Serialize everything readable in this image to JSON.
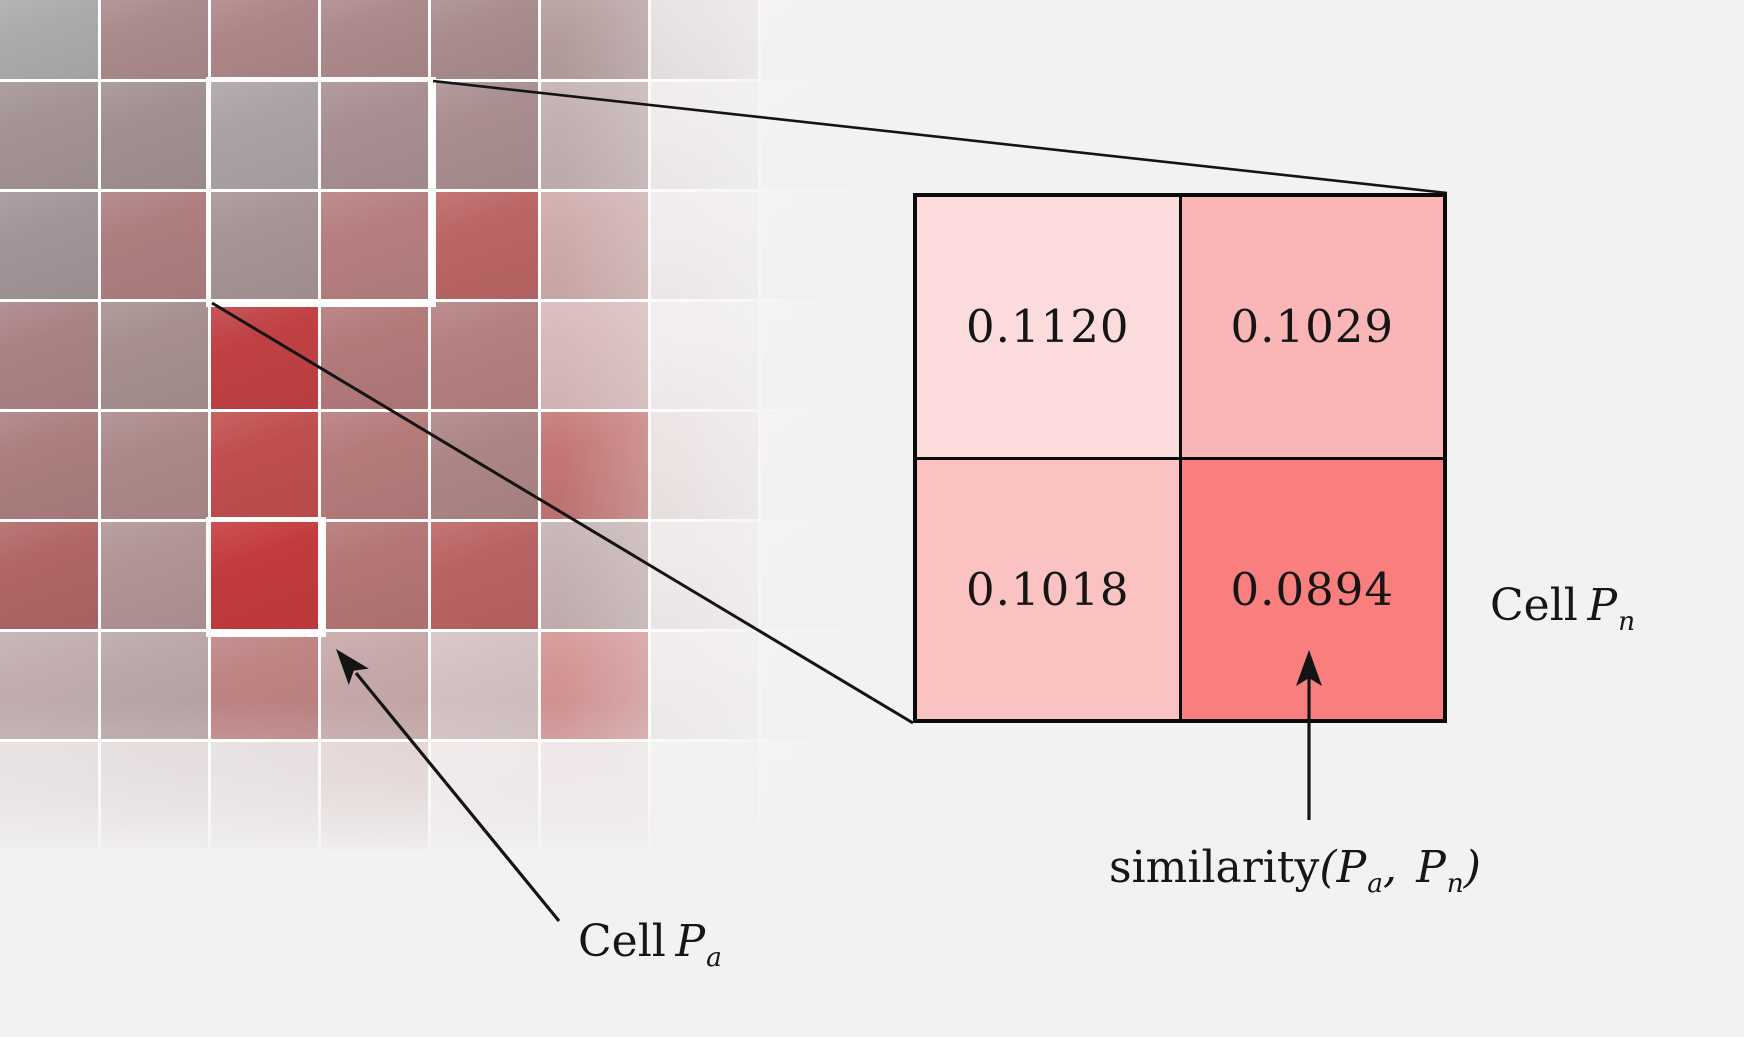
{
  "figure": {
    "background_color": "#f3f2f2",
    "line_color": "#141414",
    "text_color": "#1c1c1c"
  },
  "heatmap": {
    "gridline_color": "#ffffff",
    "highlight_border_color": "#fcfcfc",
    "cell_colors": [
      [
        "#ABABAC",
        "#AA8A8B",
        "#AE8687",
        "#AC898A",
        "#A98C8D",
        "#B49C9C",
        "#E2D8D8",
        "#F5F1F1"
      ],
      [
        "#A39395",
        "#A19092",
        "#ABA2A4",
        "#A98F91",
        "#AA8E8F",
        "#C2AFAF",
        "#EEE8E8",
        "#F5F1F1"
      ],
      [
        "#A29497",
        "#AE7E7F",
        "#A79495",
        "#B67F7F",
        "#BB6566",
        "#CEAAAA",
        "#F0E9E9",
        "#F5F1F1"
      ],
      [
        "#AA8284",
        "#A78F8F",
        "#C04143",
        "#B37A7A",
        "#B48081",
        "#D8B8B8",
        "#F2EBEB",
        "#F5F1F1"
      ],
      [
        "#AC7E7E",
        "#AB8989",
        "#C14E4E",
        "#B57B7B",
        "#AD8585",
        "#C47474",
        "#E9DCDC",
        "#F5F2F2"
      ],
      [
        "#B16566",
        "#B19495",
        "#C33B3C",
        "#B47575",
        "#BA6364",
        "#C5B1B1",
        "#EDE5E5",
        "#F5F2F2"
      ],
      [
        "#C2AEAE",
        "#BAA7A7",
        "#BF8484",
        "#C7A8A8",
        "#D4C2C2",
        "#D39393",
        "#F0E9E9",
        "#F5F2F2"
      ],
      [
        "#E3DBDB",
        "#E1D7D7",
        "#E4DADA",
        "#DFCECE",
        "#EEE6E6",
        "#EEE3E3",
        "#F3EFEF",
        "#F5F2F2"
      ]
    ],
    "neighborhood_box": {
      "rows": "1-2",
      "cols": "2-3"
    },
    "anchor_cell": {
      "row": 5,
      "col": 2
    }
  },
  "zoom_grid": {
    "border_color": "#0a0a0a",
    "cells": [
      {
        "value": "0.1120",
        "color": "#fbdbdb"
      },
      {
        "value": "0.1029",
        "color": "#fab6b6"
      },
      {
        "value": "0.1018",
        "color": "#fbc2c2"
      },
      {
        "value": "0.0894",
        "color": "#f97e7e"
      }
    ]
  },
  "labels": {
    "cell_pn": {
      "word": "Cell",
      "symbol": "P",
      "subscript": "n"
    },
    "cell_pa": {
      "word": "Cell",
      "symbol": "P",
      "subscript": "a"
    },
    "similarity": {
      "word": "similarity",
      "open_paren": "(",
      "p_first": "P",
      "sub_first": "a",
      "separator": ", ",
      "p_second": "P",
      "sub_second": "n",
      "close_paren": ")"
    }
  },
  "chart_data": {
    "type": "heatmap",
    "title": "",
    "zoom_values": [
      [
        0.112,
        0.1029
      ],
      [
        0.1018,
        0.0894
      ]
    ]
  }
}
